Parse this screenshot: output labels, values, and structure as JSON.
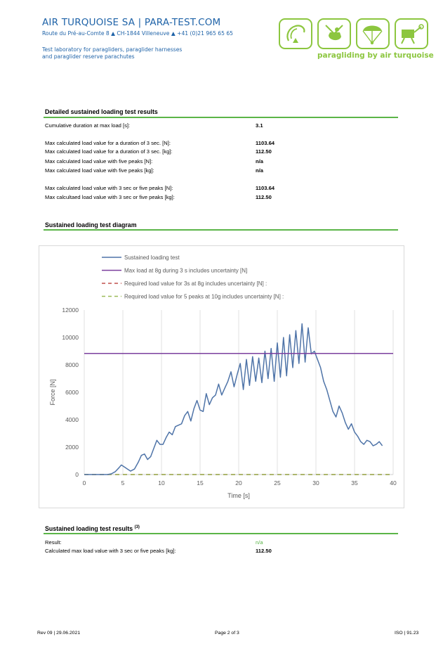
{
  "header": {
    "company": "AIR TURQUOISE SA | PARA-TEST.COM",
    "address": "Route du Pré-au-Comte 8  ▲  CH-1844 Villeneuve  ▲  +41 (0)21 965 65 65",
    "tagline_line1": "Test laboratory for paragliders, paraglider harnesses",
    "tagline_line2": "and paraglider reserve parachutes",
    "logo_text": "paragliding by air turquoise",
    "logo_color": "#8cc63f",
    "brand_color": "#1f63a8"
  },
  "detailed": {
    "title": "Detailed sustained loading test results",
    "rows": [
      {
        "label": "Cumulative duration at max load [s]:",
        "value": "3.1"
      },
      {
        "label": "Max calculated load value for a duration of 3 sec. [N]:",
        "value": "1103.64"
      },
      {
        "label": "Max calculated load value for a duration of 3 sec. [kg]:",
        "value": "112.50"
      },
      {
        "label": "Max calculated load value with five peaks [N]:",
        "value": "n/a"
      },
      {
        "label": "Max calculated load value with five peaks [kg]:",
        "value": "n/a"
      },
      {
        "label": "Max calculated load value with 3 sec or five peaks [N]:",
        "value": "1103.64"
      },
      {
        "label": "Max calcultaed load value with 3 sec or five peaks [kg]:",
        "value": "112.50"
      }
    ]
  },
  "diagram": {
    "title": "Sustained loading test diagram"
  },
  "chart_data": {
    "type": "line",
    "xlabel": "Time [s]",
    "ylabel": "Force [N]",
    "xlim": [
      0,
      40
    ],
    "ylim": [
      0,
      12000
    ],
    "x_ticks": [
      "0",
      "5",
      "10",
      "15",
      "20",
      "25",
      "30",
      "35",
      "40"
    ],
    "y_ticks": [
      "0",
      "2000",
      "4000",
      "6000",
      "8000",
      "10000",
      "12000"
    ],
    "grid": "vertical",
    "legend_position": "top",
    "series": [
      {
        "name": "Sustained loading test",
        "color": "#4f74a8",
        "style": "solid",
        "x": [
          0,
          3.0,
          3.5,
          4.0,
          4.5,
          4.8,
          5.2,
          5.6,
          6.0,
          6.5,
          7.0,
          7.4,
          7.8,
          8.2,
          8.6,
          9.0,
          9.4,
          9.8,
          10.2,
          10.6,
          11.0,
          11.4,
          11.8,
          12.2,
          12.6,
          13.0,
          13.4,
          13.8,
          14.2,
          14.6,
          15.0,
          15.4,
          15.8,
          16.2,
          16.6,
          17.0,
          17.4,
          17.8,
          18.2,
          18.6,
          19.0,
          19.4,
          19.8,
          20.2,
          20.6,
          21.0,
          21.4,
          21.8,
          22.2,
          22.6,
          23.0,
          23.4,
          23.8,
          24.2,
          24.6,
          25.0,
          25.4,
          25.8,
          26.2,
          26.6,
          27.0,
          27.4,
          27.8,
          28.2,
          28.6,
          29.0,
          29.4,
          29.8,
          30.2,
          30.6,
          31.0,
          31.4,
          31.8,
          32.2,
          32.6,
          33.0,
          33.4,
          33.8,
          34.2,
          34.6,
          35.0,
          35.4,
          35.8,
          36.2,
          36.6,
          37.0,
          37.4,
          37.8,
          38.2,
          38.6
        ],
        "y": [
          0,
          0,
          50,
          200,
          500,
          700,
          550,
          400,
          250,
          400,
          900,
          1400,
          1500,
          1100,
          1300,
          1900,
          2500,
          2200,
          2200,
          2700,
          3100,
          2900,
          3500,
          3600,
          3700,
          4300,
          4600,
          3900,
          4800,
          5400,
          4700,
          4600,
          5900,
          5100,
          5600,
          5800,
          6600,
          5800,
          6300,
          6800,
          7500,
          6400,
          7300,
          8100,
          6200,
          8400,
          6500,
          8600,
          6800,
          8500,
          6700,
          9000,
          7000,
          9200,
          6800,
          9600,
          7100,
          10000,
          7200,
          10200,
          7800,
          10500,
          8100,
          11000,
          8200,
          10700,
          8800,
          9000,
          8400,
          7800,
          6800,
          6200,
          5400,
          4600,
          4200,
          5000,
          4500,
          3800,
          3300,
          3700,
          3100,
          2800,
          2400,
          2200,
          2500,
          2400,
          2100,
          2200,
          2400,
          2100
        ]
      },
      {
        "name": "Max load at 8g during 3 s includes uncertainty [N]",
        "color": "#7b3f9e",
        "style": "solid",
        "x": [
          0,
          40
        ],
        "y": [
          8830,
          8830
        ]
      },
      {
        "name": "Required load value for 3s at 8g includes uncertainty [N] :",
        "color": "#c0504d",
        "style": "dashed",
        "x": [
          0,
          40
        ],
        "y": [
          0,
          0
        ]
      },
      {
        "name": "Required load value for 5 peaks at 10g includes uncertainty [N] :",
        "color": "#9bbb59",
        "style": "dashed",
        "x": [
          0,
          40
        ],
        "y": [
          0,
          0
        ]
      }
    ]
  },
  "results": {
    "title": "Sustained loading test results",
    "superscript": "(3)",
    "rows": [
      {
        "label": "Result:",
        "value": "n/a"
      },
      {
        "label": "Calculated max load value with 3 sec or five peaks [kg]:",
        "value": "112.50"
      }
    ]
  },
  "footer": {
    "revision": "Rev 09 | 29.06.2021",
    "page": "Page 2 of 3",
    "iso": "ISO | 91.23"
  }
}
